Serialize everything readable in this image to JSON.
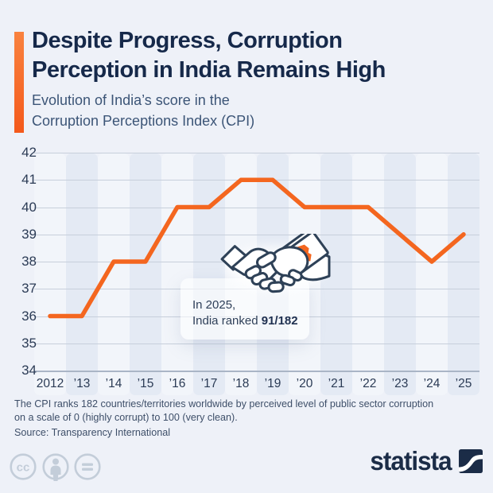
{
  "header": {
    "title_line1": "Despite Progress, Corruption",
    "title_line2": "Perception in India Remains High",
    "subtitle_line1": "Evolution of India’s score in the",
    "subtitle_line2": "Corruption Perceptions Index (CPI)"
  },
  "chart_data": {
    "type": "line",
    "title": "Despite Progress, Corruption Perception in India Remains High",
    "subtitle": "Evolution of India’s score in the Corruption Perceptions Index (CPI)",
    "categories": [
      "2012",
      "’13",
      "’14",
      "’15",
      "’16",
      "’17",
      "’18",
      "’19",
      "’20",
      "’21",
      "’22",
      "’23",
      "’24",
      "’25"
    ],
    "values": [
      36,
      36,
      38,
      38,
      40,
      40,
      41,
      41,
      40,
      40,
      40,
      39,
      38,
      39
    ],
    "xlabel": "",
    "ylabel": "",
    "ylim": [
      34,
      42
    ],
    "ytick_step": 1,
    "grid": "horizontal",
    "legend": "none",
    "line_color": "#F4661F",
    "annotation": {
      "line1": "In 2025,",
      "line2_prefix": "India ranked ",
      "line2_bold": "91/182"
    }
  },
  "footer": {
    "note_line1": "The CPI ranks 182 countries/territories worldwide by perceived level of public sector corruption",
    "note_line2": "on a scale of 0 (highly corrupt) to 100 (very clean).",
    "source": "Source: Transparency International"
  },
  "branding": {
    "logo_text": "statista"
  },
  "icons": {
    "handshake": "bribe-handshake-icon",
    "license": [
      "cc-icon",
      "attribution-person-icon",
      "equals-icon"
    ],
    "logo_mark": "statista-swoosh-icon"
  },
  "colors": {
    "background": "#EEF1F8",
    "accent_orange": "#F4661F",
    "title_navy": "#16294A",
    "subtitle_blue": "#3C5577",
    "band_blue": "#E4EAF4",
    "gridline": "#C7CFDB",
    "logo_navy": "#1B2C47"
  }
}
